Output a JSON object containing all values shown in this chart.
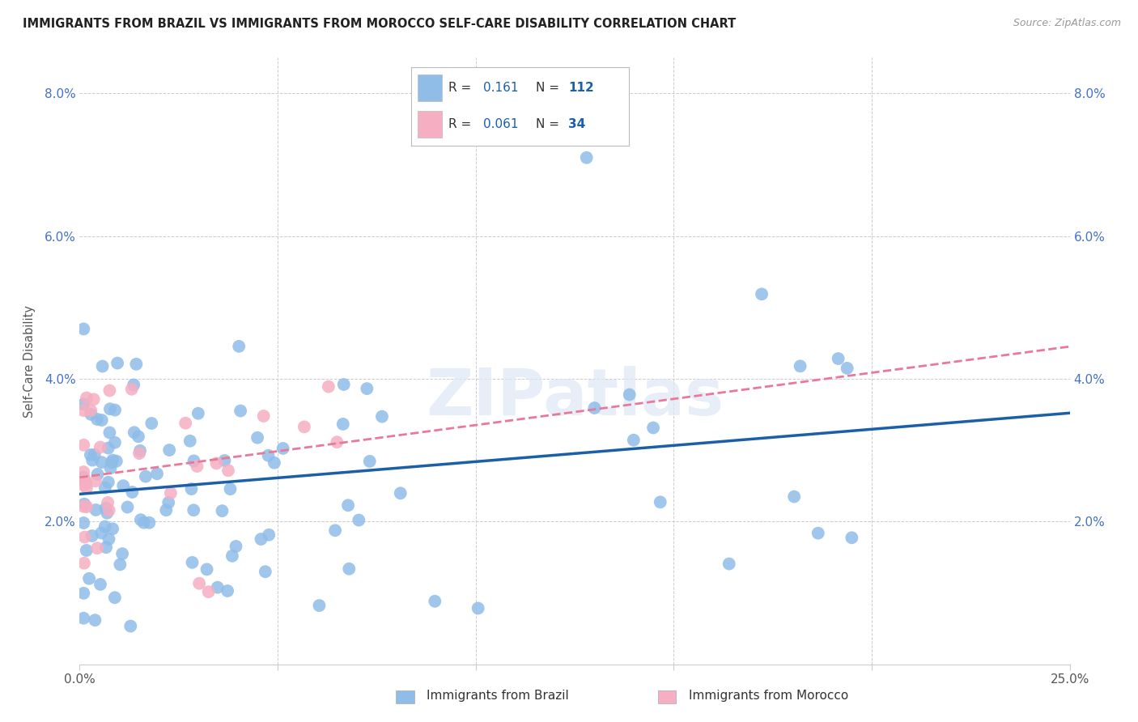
{
  "title": "IMMIGRANTS FROM BRAZIL VS IMMIGRANTS FROM MOROCCO SELF-CARE DISABILITY CORRELATION CHART",
  "source": "Source: ZipAtlas.com",
  "ylabel": "Self-Care Disability",
  "xlim": [
    0.0,
    0.25
  ],
  "ylim": [
    0.0,
    0.085
  ],
  "brazil_color": "#8fbde8",
  "morocco_color": "#f5aec2",
  "brazil_line_color": "#1a5fa8",
  "morocco_line_color": "#e8799a",
  "brazil_R": 0.161,
  "brazil_N": 112,
  "morocco_R": 0.061,
  "morocco_N": 34,
  "watermark": "ZIPatlas",
  "background_color": "#ffffff",
  "grid_color": "#cccccc",
  "legend_text_color": "#1a5fa8",
  "legend_label_color": "#333333",
  "tick_color": "#4472c4",
  "brazil_legend_label": "Immigrants from Brazil",
  "morocco_legend_label": "Immigrants from Morocco"
}
